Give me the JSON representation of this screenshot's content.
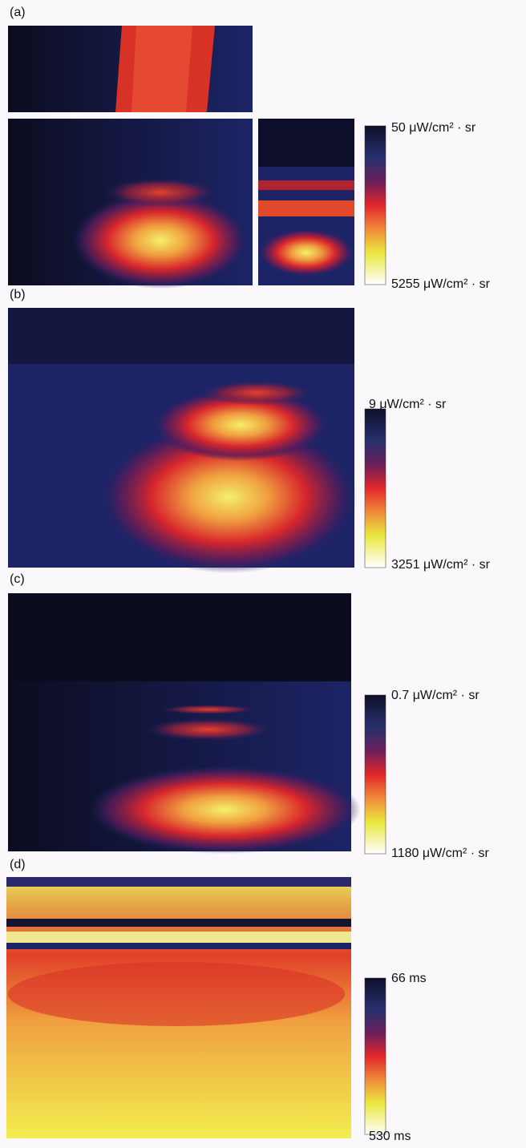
{
  "panels": [
    {
      "label": "(a)",
      "colorbar": {
        "top_label": "50 μW/cm² · sr",
        "bottom_label": "5255 μW/cm² · sr"
      }
    },
    {
      "label": "(b)",
      "colorbar": {
        "top_label": "9 μW/cm² · sr",
        "bottom_label": "3251 μW/cm² · sr"
      }
    },
    {
      "label": "(c)",
      "colorbar": {
        "top_label": "0.7 μW/cm² · sr",
        "bottom_label": "1180 μW/cm² · sr"
      }
    },
    {
      "label": "(d)",
      "colorbar": {
        "top_label": "66 ms",
        "bottom_label": "530 ms"
      }
    }
  ]
}
